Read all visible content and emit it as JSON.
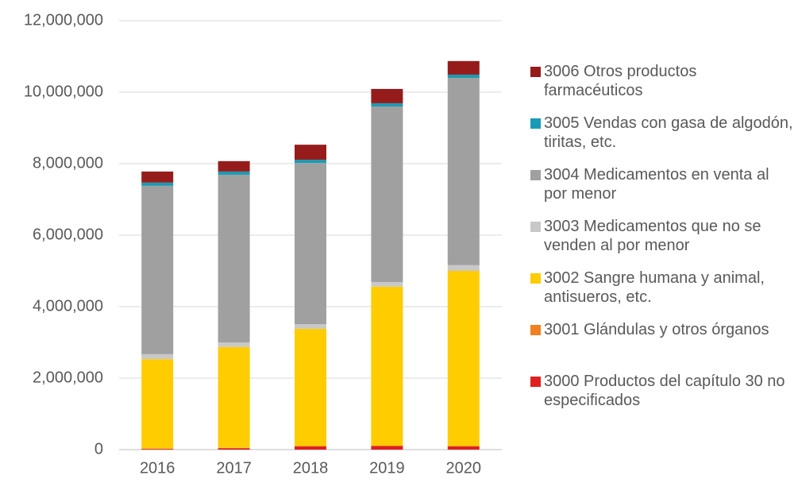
{
  "chart_data": {
    "type": "bar",
    "stacked": true,
    "categories": [
      "2016",
      "2017",
      "2018",
      "2019",
      "2020"
    ],
    "series": [
      {
        "name": "3000 Productos del capítulo 30 no especificados",
        "color": "#e02020",
        "values": [
          20000,
          40000,
          90000,
          100000,
          90000
        ]
      },
      {
        "name": "3001 Glándulas y otros órganos",
        "color": "#f08020",
        "values": [
          10000,
          10000,
          10000,
          10000,
          10000
        ]
      },
      {
        "name": "3002 Sangre humana y animal, antisueros, etc.",
        "color": "#ffcc00",
        "values": [
          2500000,
          2820000,
          3280000,
          4450000,
          4900000
        ]
      },
      {
        "name": "3003 Medicamentos que no se venden al por menor",
        "color": "#c8c8c8",
        "values": [
          140000,
          130000,
          130000,
          130000,
          160000
        ]
      },
      {
        "name": "3004 Medicamentos en venta al por menor",
        "color": "#a0a0a0",
        "values": [
          4710000,
          4690000,
          4510000,
          4910000,
          5240000
        ]
      },
      {
        "name": "3005 Vendas con gasa de algodón, tiritas, etc.",
        "color": "#1a9bb5",
        "values": [
          90000,
          90000,
          90000,
          90000,
          90000
        ]
      },
      {
        "name": "3006 Otros productos farmacéuticos",
        "color": "#961c1c",
        "values": [
          310000,
          290000,
          420000,
          400000,
          380000
        ]
      }
    ],
    "ylim": [
      0,
      12000000
    ],
    "yticks": [
      0,
      {
        "value": 2000000,
        "label": "2,000,000"
      },
      {
        "value": 4000000,
        "label": "4,000,000"
      },
      {
        "value": 6000000,
        "label": "6,000,000"
      },
      {
        "value": 8000000,
        "label": "8,000,000"
      },
      {
        "value": 10000000,
        "label": "10,000,000"
      },
      {
        "value": 12000000,
        "label": "12,000,000"
      }
    ],
    "grid": true,
    "legend": "right"
  }
}
